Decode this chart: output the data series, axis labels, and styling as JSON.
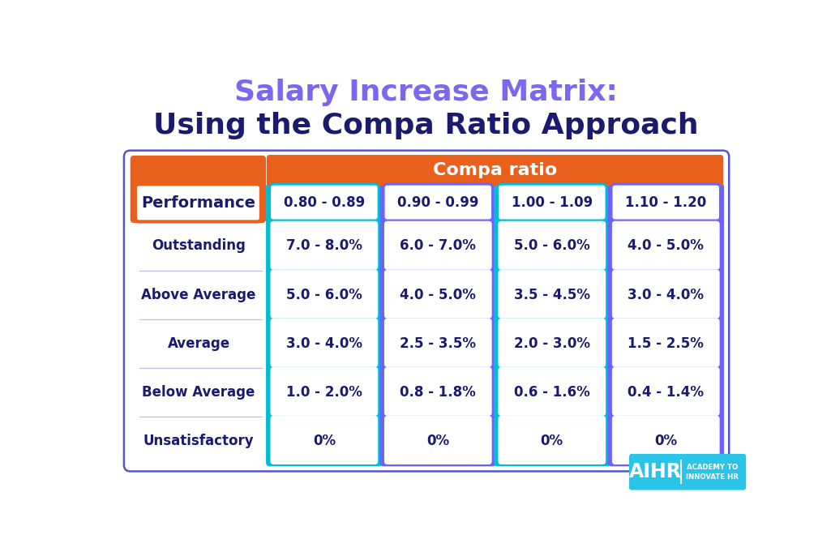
{
  "title_line1": "Salary Increase Matrix:",
  "title_line2": "Using the Compa Ratio Approach",
  "title_line1_color": "#7B68EE",
  "title_line2_color": "#1a1a6e",
  "bg_color": "#ffffff",
  "table_border_color": "#5555cc",
  "orange_color": "#E8601C",
  "compa_label": "Compa ratio",
  "performance_label": "Performance",
  "col_headers": [
    "0.80 - 0.89",
    "0.90 - 0.99",
    "1.00 - 1.09",
    "1.10 - 1.20"
  ],
  "row_labels": [
    "Outstanding",
    "Above Average",
    "Average",
    "Below Average",
    "Unsatisfactory"
  ],
  "data": [
    [
      "7.0 - 8.0%",
      "6.0 - 7.0%",
      "5.0 - 6.0%",
      "4.0 - 5.0%"
    ],
    [
      "5.0 - 6.0%",
      "4.0 - 5.0%",
      "3.5 - 4.5%",
      "3.0 - 4.0%"
    ],
    [
      "3.0 - 4.0%",
      "2.5 - 3.5%",
      "2.0 - 3.0%",
      "1.5 - 2.5%"
    ],
    [
      "1.0 - 2.0%",
      "0.8 - 1.8%",
      "0.6 - 1.6%",
      "0.4 - 1.4%"
    ],
    [
      "0%",
      "0%",
      "0%",
      "0%"
    ]
  ],
  "col_colors": [
    "#00BCD4",
    "#6C63FF",
    "#00BCD4",
    "#6C63FF"
  ],
  "aihr_bg": "#29C4E8",
  "fig_width": 10.25,
  "fig_height": 6.81
}
